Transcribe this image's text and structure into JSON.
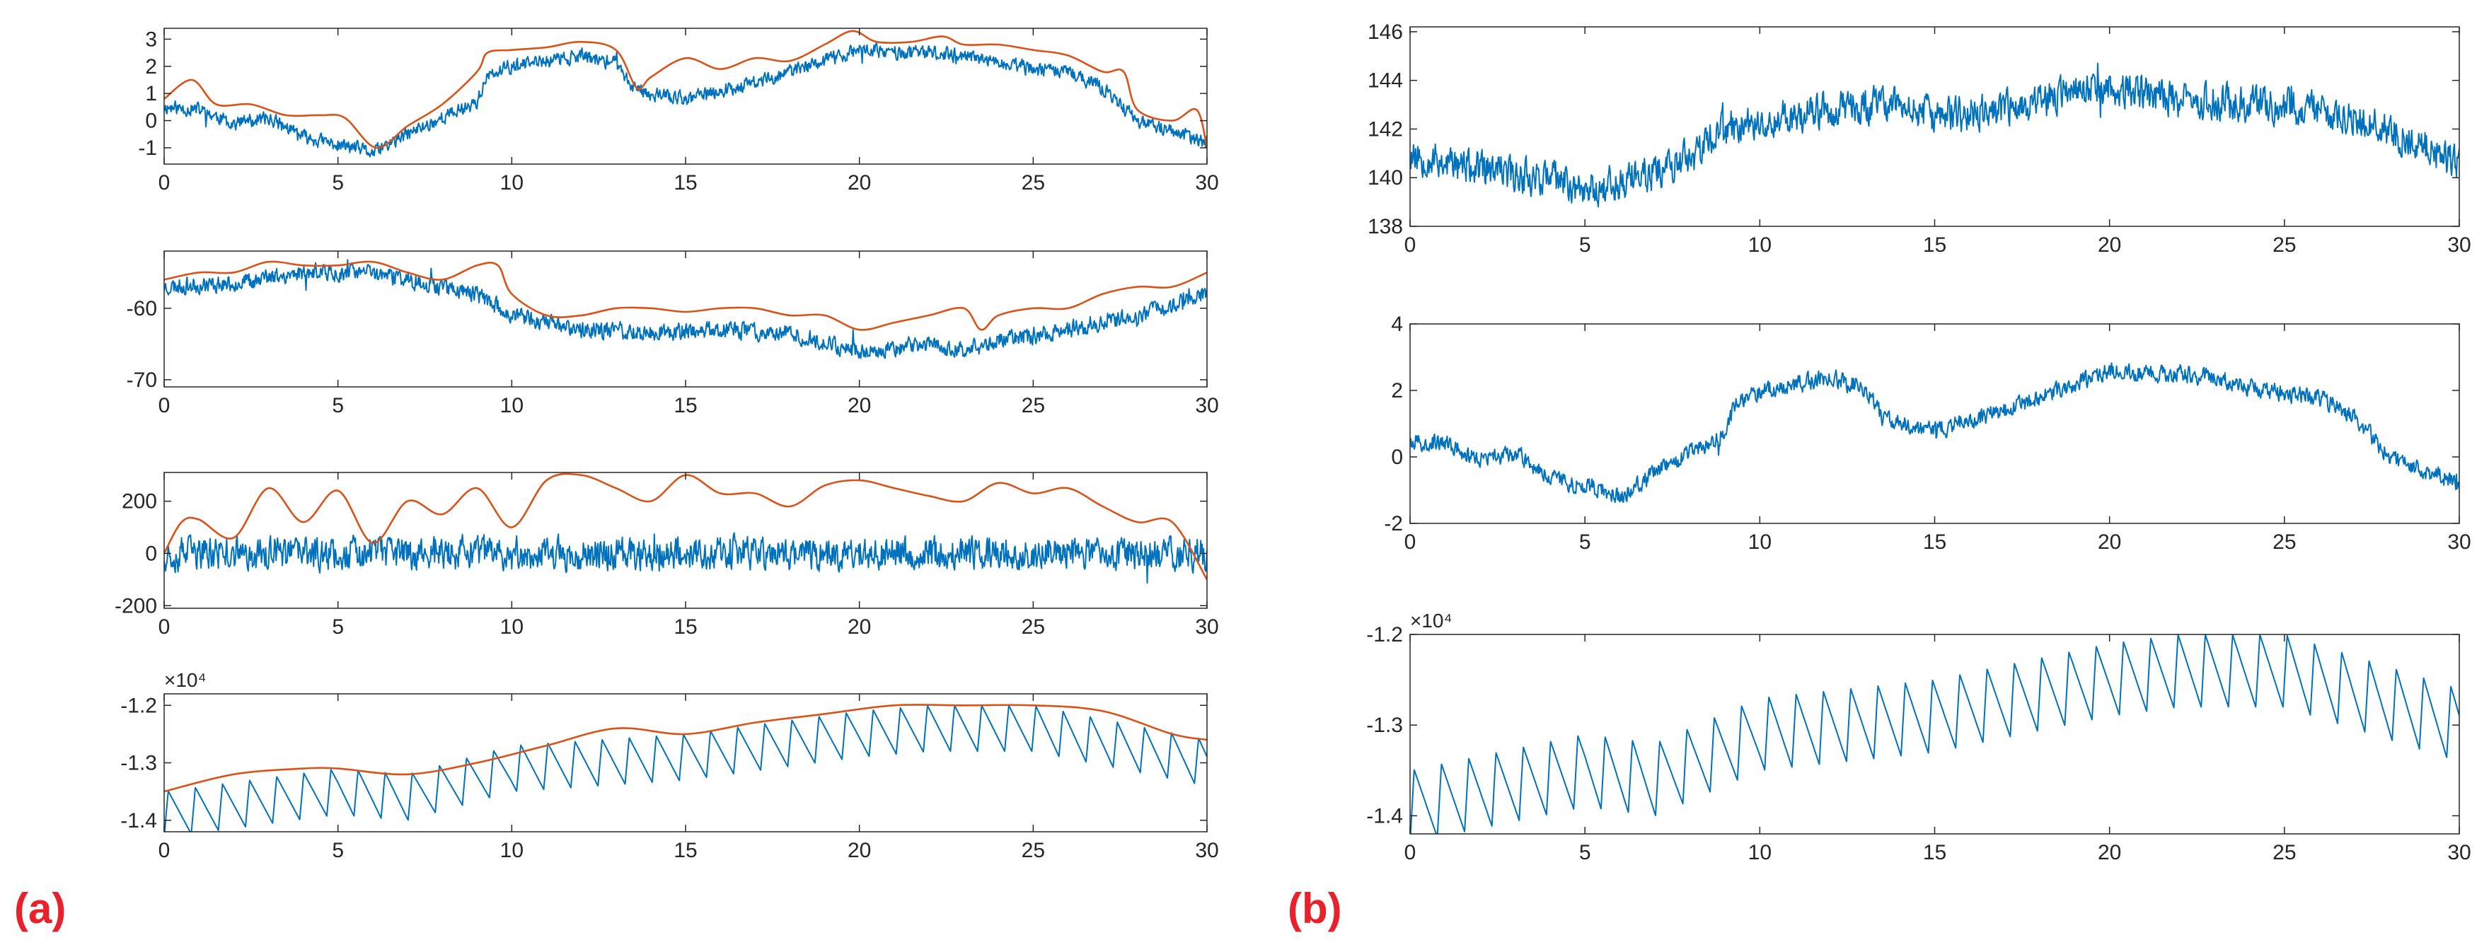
{
  "figure": {
    "panel_labels": [
      "(a)",
      "(b)"
    ],
    "colors": {
      "signal": "#0072BD",
      "envelope": "#D95319",
      "axis": "#262626",
      "label": "#e8212b"
    }
  },
  "chart_data": [
    {
      "id": "a1",
      "panel": "(a)",
      "type": "line",
      "xlim": [
        0,
        30
      ],
      "ylim": [
        -1.6,
        3.4
      ],
      "xticks": [
        0,
        5,
        10,
        15,
        20,
        25,
        30
      ],
      "xtick_labels": [
        "0",
        "5",
        "10",
        "15",
        "20",
        "25",
        "30"
      ],
      "yticks": [
        -1,
        0,
        1,
        2,
        3
      ],
      "ytick_labels": [
        "-1",
        "0",
        "1",
        "2",
        "3"
      ],
      "series": [
        {
          "name": "signal",
          "color": "#0072BD",
          "noise": 0.35,
          "seed": 11,
          "x": [
            0,
            1,
            2,
            3,
            4,
            5,
            5.5,
            6,
            7,
            8,
            9,
            9.3,
            10,
            11,
            12,
            13,
            13.5,
            14,
            15,
            16,
            17,
            18,
            19,
            20,
            21,
            22,
            23,
            24,
            25,
            26,
            27,
            28,
            29,
            30
          ],
          "y": [
            0.5,
            0.4,
            -0.1,
            0.1,
            -0.6,
            -0.9,
            -1.0,
            -1.2,
            -0.5,
            0.1,
            0.7,
            1.6,
            2.0,
            2.2,
            2.4,
            2.1,
            1.2,
            1.0,
            0.8,
            1.1,
            1.4,
            1.8,
            2.2,
            2.6,
            2.5,
            2.5,
            2.4,
            2.1,
            1.9,
            1.8,
            1.2,
            0.0,
            -0.4,
            -0.8
          ]
        },
        {
          "name": "envelope",
          "color": "#D95319",
          "x": [
            0,
            0.8,
            1.5,
            2.5,
            3.5,
            4.5,
            5.2,
            6.1,
            7,
            8,
            9,
            9.3,
            10,
            11,
            12,
            13,
            13.6,
            14,
            15,
            16,
            17,
            18,
            19,
            19.8,
            20.5,
            21.5,
            22.4,
            23,
            24,
            25,
            26,
            27,
            27.6,
            28,
            29,
            29.7,
            30
          ],
          "y": [
            0.8,
            1.5,
            0.6,
            0.6,
            0.2,
            0.2,
            0.1,
            -1.0,
            -0.2,
            0.6,
            1.8,
            2.5,
            2.6,
            2.7,
            2.9,
            2.6,
            1.2,
            1.6,
            2.3,
            1.9,
            2.3,
            2.2,
            2.8,
            3.3,
            2.9,
            2.9,
            3.1,
            2.8,
            2.8,
            2.6,
            2.4,
            1.8,
            1.8,
            0.4,
            0.0,
            0.4,
            -1.0
          ]
        }
      ]
    },
    {
      "id": "a2",
      "panel": "(a)",
      "type": "line",
      "xlim": [
        0,
        30
      ],
      "ylim": [
        -71,
        -52
      ],
      "xticks": [
        0,
        5,
        10,
        15,
        20,
        25,
        30
      ],
      "xtick_labels": [
        "0",
        "5",
        "10",
        "15",
        "20",
        "25",
        "30"
      ],
      "yticks": [
        -60,
        -70
      ],
      "ytick_labels": [
        "-60",
        "-70"
      ],
      "series": [
        {
          "name": "signal",
          "color": "#0072BD",
          "noise": 1.6,
          "seed": 23,
          "x": [
            0,
            2,
            4,
            6,
            8,
            9,
            10,
            12,
            14,
            16,
            18,
            20,
            22,
            23,
            24,
            26,
            28,
            30
          ],
          "y": [
            -57,
            -56.5,
            -55,
            -55,
            -57,
            -58,
            -61,
            -63,
            -63.5,
            -63,
            -63.5,
            -66,
            -65,
            -66,
            -64.5,
            -63,
            -61,
            -58
          ]
        },
        {
          "name": "envelope",
          "color": "#D95319",
          "x": [
            0,
            1,
            2,
            3,
            4,
            5,
            6,
            7,
            8,
            9,
            9.6,
            10,
            11,
            12,
            13,
            14,
            15,
            16,
            17,
            18,
            19,
            20,
            21,
            22,
            23,
            23.5,
            24,
            25,
            26,
            27,
            28,
            29,
            30
          ],
          "y": [
            -56,
            -55,
            -55,
            -53.5,
            -54,
            -54,
            -53.5,
            -55,
            -56,
            -54,
            -54,
            -58,
            -61,
            -61,
            -60,
            -60,
            -60.5,
            -60,
            -60,
            -61,
            -61,
            -63,
            -62,
            -61,
            -60,
            -63,
            -61,
            -60,
            -60,
            -58,
            -57,
            -57,
            -55
          ]
        }
      ]
    },
    {
      "id": "a3",
      "panel": "(a)",
      "type": "line",
      "xlim": [
        0,
        30
      ],
      "ylim": [
        -210,
        310
      ],
      "xticks": [
        0,
        5,
        10,
        15,
        20,
        25,
        30
      ],
      "xtick_labels": [
        "0",
        "5",
        "10",
        "15",
        "20",
        "25",
        "30"
      ],
      "yticks": [
        200,
        0,
        -200
      ],
      "ytick_labels": [
        "200",
        "0",
        "-200"
      ],
      "series": [
        {
          "name": "signal",
          "color": "#0072BD",
          "noise": 85,
          "seed": 37,
          "x": [
            0,
            30
          ],
          "y": [
            0,
            0
          ]
        },
        {
          "name": "envelope",
          "color": "#D95319",
          "x": [
            0,
            0.5,
            1,
            2,
            3,
            4,
            5,
            6,
            7,
            8,
            9,
            10,
            11,
            12,
            13,
            14,
            15,
            16,
            17,
            18,
            19,
            20,
            21,
            22,
            23,
            24,
            25,
            26,
            27,
            28,
            29,
            30
          ],
          "y": [
            0,
            120,
            130,
            60,
            250,
            120,
            240,
            40,
            200,
            150,
            250,
            100,
            280,
            300,
            250,
            200,
            300,
            230,
            230,
            180,
            260,
            280,
            250,
            220,
            200,
            270,
            230,
            250,
            180,
            120,
            120,
            -100
          ]
        }
      ]
    },
    {
      "id": "a4",
      "panel": "(a)",
      "type": "line",
      "xlim": [
        0,
        30
      ],
      "ylim": [
        -1.42,
        -1.18
      ],
      "y_exponent": "×10⁴",
      "xticks": [
        0,
        5,
        10,
        15,
        20,
        25,
        30
      ],
      "xtick_labels": [
        "0",
        "5",
        "10",
        "15",
        "20",
        "25",
        "30"
      ],
      "yticks": [
        -1.2,
        -1.3,
        -1.4
      ],
      "ytick_labels": [
        "-1.2",
        "-1.3",
        "-1.4"
      ],
      "series": [
        {
          "name": "signal",
          "color": "#0072BD",
          "sawtooth": {
            "period": 0.78,
            "amp": 0.08
          },
          "x": [
            0,
            5,
            7,
            10,
            15,
            20,
            22,
            25,
            30
          ],
          "y": [
            -1.35,
            -1.31,
            -1.32,
            -1.27,
            -1.25,
            -1.21,
            -1.2,
            -1.2,
            -1.26
          ]
        },
        {
          "name": "envelope",
          "color": "#D95319",
          "x": [
            0,
            2,
            4,
            5,
            7,
            9,
            11,
            13,
            15,
            17,
            19,
            21,
            23,
            25,
            27,
            29,
            30
          ],
          "y": [
            -1.35,
            -1.32,
            -1.31,
            -1.31,
            -1.32,
            -1.3,
            -1.27,
            -1.24,
            -1.25,
            -1.23,
            -1.215,
            -1.2,
            -1.2,
            -1.2,
            -1.21,
            -1.25,
            -1.26
          ]
        }
      ]
    },
    {
      "id": "b1",
      "panel": "(b)",
      "type": "line",
      "xlim": [
        0,
        30
      ],
      "ylim": [
        138,
        146.2
      ],
      "xticks": [
        0,
        5,
        10,
        15,
        20,
        25,
        30
      ],
      "xtick_labels": [
        "0",
        "5",
        "10",
        "15",
        "20",
        "25",
        "30"
      ],
      "yticks": [
        138,
        140,
        142,
        144,
        146
      ],
      "ytick_labels": [
        "138",
        "140",
        "142",
        "144",
        "146"
      ],
      "series": [
        {
          "name": "signal",
          "color": "#0072BD",
          "noise": 1.0,
          "seed": 53,
          "x": [
            0,
            2,
            4,
            5,
            6,
            8,
            9,
            10,
            12,
            14,
            15,
            17,
            19,
            20,
            22,
            24,
            26,
            28,
            30
          ],
          "y": [
            141,
            140.3,
            140,
            139.5,
            139.8,
            140.8,
            142,
            142.3,
            142.8,
            143,
            142.5,
            142.8,
            143.5,
            143.8,
            143.2,
            143,
            142.8,
            142,
            140.5
          ]
        }
      ]
    },
    {
      "id": "b2",
      "panel": "(b)",
      "type": "line",
      "xlim": [
        0,
        30
      ],
      "ylim": [
        -2,
        4
      ],
      "xticks": [
        0,
        5,
        10,
        15,
        20,
        25,
        30
      ],
      "xtick_labels": [
        "0",
        "5",
        "10",
        "15",
        "20",
        "25",
        "30"
      ],
      "yticks": [
        -2,
        0,
        2,
        4
      ],
      "ytick_labels": [
        "-2",
        "0",
        "2",
        "4"
      ],
      "series": [
        {
          "name": "signal",
          "color": "#0072BD",
          "noise": 0.35,
          "seed": 67,
          "x": [
            0,
            1,
            2,
            3,
            4,
            5,
            5.5,
            6,
            7,
            8,
            9,
            9.3,
            10,
            11,
            12,
            13,
            13.5,
            14,
            15,
            16,
            17,
            18,
            19,
            20,
            21,
            22,
            23,
            24,
            25,
            26,
            27,
            28,
            29,
            30
          ],
          "y": [
            0.5,
            0.4,
            -0.1,
            0.1,
            -0.6,
            -0.9,
            -1.0,
            -1.2,
            -0.5,
            0.1,
            0.7,
            1.6,
            2.0,
            2.2,
            2.4,
            2.1,
            1.2,
            1.0,
            0.8,
            1.1,
            1.4,
            1.8,
            2.2,
            2.6,
            2.5,
            2.5,
            2.4,
            2.1,
            1.9,
            1.8,
            1.2,
            0.0,
            -0.4,
            -0.8
          ]
        }
      ]
    },
    {
      "id": "b3",
      "panel": "(b)",
      "type": "line",
      "xlim": [
        0,
        30
      ],
      "ylim": [
        -1.42,
        -1.2
      ],
      "y_exponent": "×10⁴",
      "xticks": [
        0,
        5,
        10,
        15,
        20,
        25,
        30
      ],
      "xtick_labels": [
        "0",
        "5",
        "10",
        "15",
        "20",
        "25",
        "30"
      ],
      "yticks": [
        -1.2,
        -1.3,
        -1.4
      ],
      "ytick_labels": [
        "-1.2",
        "-1.3",
        "-1.4"
      ],
      "series": [
        {
          "name": "signal",
          "color": "#0072BD",
          "sawtooth": {
            "period": 0.78,
            "amp": 0.08
          },
          "x": [
            0,
            5,
            7,
            10,
            15,
            20,
            22,
            25,
            30
          ],
          "y": [
            -1.35,
            -1.31,
            -1.32,
            -1.27,
            -1.25,
            -1.21,
            -1.2,
            -1.2,
            -1.26
          ]
        }
      ]
    }
  ]
}
